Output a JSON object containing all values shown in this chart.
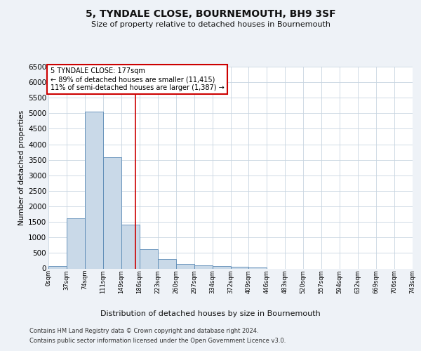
{
  "title": "5, TYNDALE CLOSE, BOURNEMOUTH, BH9 3SF",
  "subtitle": "Size of property relative to detached houses in Bournemouth",
  "xlabel": "Distribution of detached houses by size in Bournemouth",
  "ylabel": "Number of detached properties",
  "bin_labels": [
    "0sqm",
    "37sqm",
    "74sqm",
    "111sqm",
    "149sqm",
    "186sqm",
    "223sqm",
    "260sqm",
    "297sqm",
    "334sqm",
    "372sqm",
    "409sqm",
    "446sqm",
    "483sqm",
    "520sqm",
    "557sqm",
    "594sqm",
    "632sqm",
    "669sqm",
    "706sqm",
    "743sqm"
  ],
  "bar_values": [
    75,
    1625,
    5060,
    3580,
    1410,
    620,
    295,
    145,
    105,
    80,
    55,
    35,
    0,
    0,
    0,
    0,
    0,
    0,
    0,
    0
  ],
  "bar_color": "#c9d9e8",
  "bar_edgecolor": "#5a8ab5",
  "vline_x_bin": 4.783,
  "annotation_text": "5 TYNDALE CLOSE: 177sqm\n← 89% of detached houses are smaller (11,415)\n11% of semi-detached houses are larger (1,387) →",
  "annotation_box_color": "#ffffff",
  "annotation_box_edgecolor": "#cc0000",
  "ylim": [
    0,
    6500
  ],
  "yticks": [
    0,
    500,
    1000,
    1500,
    2000,
    2500,
    3000,
    3500,
    4000,
    4500,
    5000,
    5500,
    6000,
    6500
  ],
  "footer_line1": "Contains HM Land Registry data © Crown copyright and database right 2024.",
  "footer_line2": "Contains public sector information licensed under the Open Government Licence v3.0.",
  "bg_color": "#eef2f7",
  "plot_bg_color": "#ffffff",
  "grid_color": "#c8d4e0",
  "vline_color": "#cc0000",
  "title_fontsize": 10,
  "subtitle_fontsize": 8,
  "ylabel_fontsize": 7.5,
  "xlabel_fontsize": 8,
  "ytick_fontsize": 7.5,
  "xtick_fontsize": 6,
  "footer_fontsize": 6,
  "annot_fontsize": 7
}
